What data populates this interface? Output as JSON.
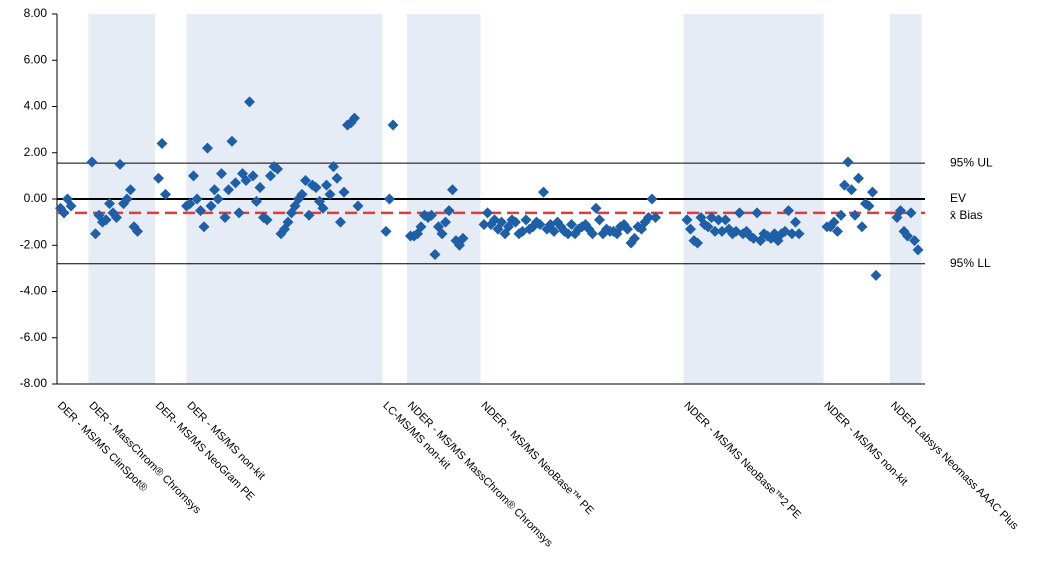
{
  "chart_data": {
    "type": "scatter",
    "ylim": [
      -8,
      8
    ],
    "yticks": [
      {
        "value": 8,
        "label": "8.00"
      },
      {
        "value": 6,
        "label": "6.00"
      },
      {
        "value": 4,
        "label": "4.00"
      },
      {
        "value": 2,
        "label": "2.00"
      },
      {
        "value": 0,
        "label": "0.00"
      },
      {
        "value": -2,
        "label": "-2.00"
      },
      {
        "value": -4,
        "label": "-4.00"
      },
      {
        "value": -6,
        "label": "-6.00"
      },
      {
        "value": -8,
        "label": "-8.00"
      }
    ],
    "xlim": [
      0,
      248
    ],
    "color": "#1f5fa8",
    "band_color": "#e6ecf5",
    "groups": [
      {
        "name": "DER - MS/MS ClinSpot®",
        "start": 0,
        "end": 9,
        "shaded": false
      },
      {
        "name": "DER - MassChrom® Chromsys",
        "start": 9,
        "end": 28,
        "shaded": true
      },
      {
        "name": "DER- MS/MS NeoGram PE",
        "start": 28,
        "end": 37,
        "shaded": false
      },
      {
        "name": "DER - MS/MS non-kit",
        "start": 37,
        "end": 93,
        "shaded": true
      },
      {
        "name": "LC-MS/MS non-kit",
        "start": 93,
        "end": 100,
        "shaded": false
      },
      {
        "name": "NDER - MS/MS MassChrom® Chromsys",
        "start": 100,
        "end": 121,
        "shaded": true
      },
      {
        "name": "NDER - MS/MS NeoBase™ PE",
        "start": 121,
        "end": 179,
        "shaded": false
      },
      {
        "name": "NDER - MS/MS NeoBase™2 PE",
        "start": 179,
        "end": 219,
        "shaded": true
      },
      {
        "name": "NDER - MS/MS non-kit",
        "start": 219,
        "end": 238,
        "shaded": false
      },
      {
        "name": "NDER Labsys Neomass AAAC Plus",
        "start": 238,
        "end": 247,
        "shaded": true
      }
    ],
    "reference_lines": [
      {
        "name": "95% UL",
        "value": 1.55,
        "color": "#000000",
        "width": 1,
        "dashed": false
      },
      {
        "name": "EV",
        "value": 0,
        "color": "#000000",
        "width": 2,
        "dashed": false
      },
      {
        "name": "x̄ Bias",
        "value": -0.6,
        "color": "#e03c3c",
        "width": 2.5,
        "dashed": true
      },
      {
        "name": "95% LL",
        "value": -2.8,
        "color": "#000000",
        "width": 1,
        "dashed": false
      }
    ],
    "x": [
      1,
      2,
      3,
      4,
      10,
      11,
      12,
      13,
      14,
      15,
      16,
      17,
      18,
      19,
      20,
      21,
      22,
      23,
      29,
      30,
      31,
      37,
      38,
      39,
      40,
      41,
      42,
      43,
      44,
      45,
      46,
      47,
      48,
      49,
      50,
      51,
      52,
      53,
      54,
      55,
      56,
      57,
      58,
      59,
      60,
      61,
      62,
      63,
      64,
      65,
      66,
      67,
      68,
      69,
      70,
      71,
      72,
      73,
      74,
      75,
      76,
      77,
      78,
      79,
      80,
      81,
      82,
      83,
      84,
      85,
      86,
      94,
      95,
      96,
      101,
      102,
      103,
      104,
      105,
      106,
      107,
      108,
      109,
      110,
      111,
      112,
      113,
      114,
      115,
      116,
      122,
      123,
      124,
      125,
      126,
      127,
      128,
      129,
      130,
      131,
      132,
      133,
      134,
      135,
      136,
      137,
      138,
      139,
      140,
      141,
      142,
      143,
      144,
      145,
      146,
      147,
      148,
      149,
      150,
      151,
      152,
      153,
      154,
      155,
      156,
      157,
      158,
      159,
      160,
      161,
      162,
      163,
      164,
      165,
      166,
      167,
      168,
      169,
      170,
      171,
      180,
      181,
      182,
      183,
      184,
      185,
      186,
      187,
      188,
      189,
      190,
      191,
      192,
      193,
      194,
      195,
      196,
      197,
      198,
      199,
      200,
      201,
      202,
      203,
      204,
      205,
      206,
      207,
      208,
      209,
      210,
      211,
      212,
      220,
      221,
      222,
      223,
      224,
      225,
      226,
      227,
      228,
      229,
      230,
      231,
      232,
      233,
      234,
      240,
      241,
      242,
      243,
      244,
      245,
      246
    ],
    "values": [
      -0.4,
      -0.6,
      0.0,
      -0.3,
      1.6,
      -1.5,
      -0.7,
      -1.0,
      -0.9,
      -0.2,
      -0.6,
      -0.8,
      1.5,
      -0.2,
      0.0,
      0.4,
      -1.2,
      -1.4,
      0.9,
      2.4,
      0.2,
      -0.3,
      -0.2,
      1.0,
      0.0,
      -0.5,
      -1.2,
      2.2,
      -0.3,
      0.4,
      0.0,
      1.1,
      -0.8,
      0.4,
      2.5,
      0.7,
      -0.6,
      1.1,
      0.8,
      4.2,
      1.0,
      -0.1,
      0.5,
      -0.8,
      -0.9,
      1.0,
      1.4,
      1.3,
      -1.5,
      -1.3,
      -1.0,
      -0.6,
      -0.3,
      0.0,
      0.2,
      0.8,
      -0.7,
      0.6,
      0.5,
      -0.1,
      -0.4,
      0.6,
      0.2,
      1.4,
      0.9,
      -1.0,
      0.3,
      3.2,
      3.3,
      3.5,
      -0.3,
      -1.4,
      0.0,
      3.2,
      -1.6,
      -1.6,
      -1.5,
      -1.2,
      -0.7,
      -0.8,
      -0.7,
      -2.4,
      -1.2,
      -1.5,
      -1.0,
      -0.5,
      0.4,
      -1.8,
      -2.0,
      -1.7,
      -1.1,
      -0.6,
      -1.1,
      -0.9,
      -1.3,
      -1.0,
      -1.5,
      -1.2,
      -0.9,
      -1.0,
      -1.5,
      -1.4,
      -0.9,
      -1.3,
      -1.2,
      -1.0,
      -1.1,
      0.3,
      -1.3,
      -1.1,
      -1.4,
      -1.0,
      -1.2,
      -1.4,
      -1.5,
      -1.1,
      -1.5,
      -1.3,
      -1.2,
      -1.1,
      -1.3,
      -1.5,
      -0.4,
      -0.9,
      -1.5,
      -1.3,
      -1.4,
      -1.4,
      -1.5,
      -1.2,
      -1.1,
      -1.3,
      -1.9,
      -1.7,
      -1.2,
      -1.3,
      -1.0,
      -0.8,
      0.0,
      -0.8,
      -0.9,
      -1.3,
      -1.8,
      -1.9,
      -0.8,
      -1.1,
      -1.2,
      -0.8,
      -1.4,
      -0.9,
      -1.4,
      -0.9,
      -1.3,
      -1.5,
      -1.4,
      -0.6,
      -1.5,
      -1.4,
      -1.6,
      -1.7,
      -0.6,
      -1.8,
      -1.5,
      -1.6,
      -1.7,
      -1.5,
      -1.8,
      -1.5,
      -1.4,
      -0.5,
      -1.5,
      -1.0,
      -1.5,
      -1.2,
      -1.2,
      -1.0,
      -1.4,
      -0.7,
      0.6,
      1.6,
      0.4,
      -0.7,
      0.9,
      -1.2,
      -0.2,
      -0.3,
      0.3,
      -3.3,
      -0.8,
      -0.5,
      -1.4,
      -1.6,
      -0.6,
      -1.8,
      -2.2
    ]
  }
}
